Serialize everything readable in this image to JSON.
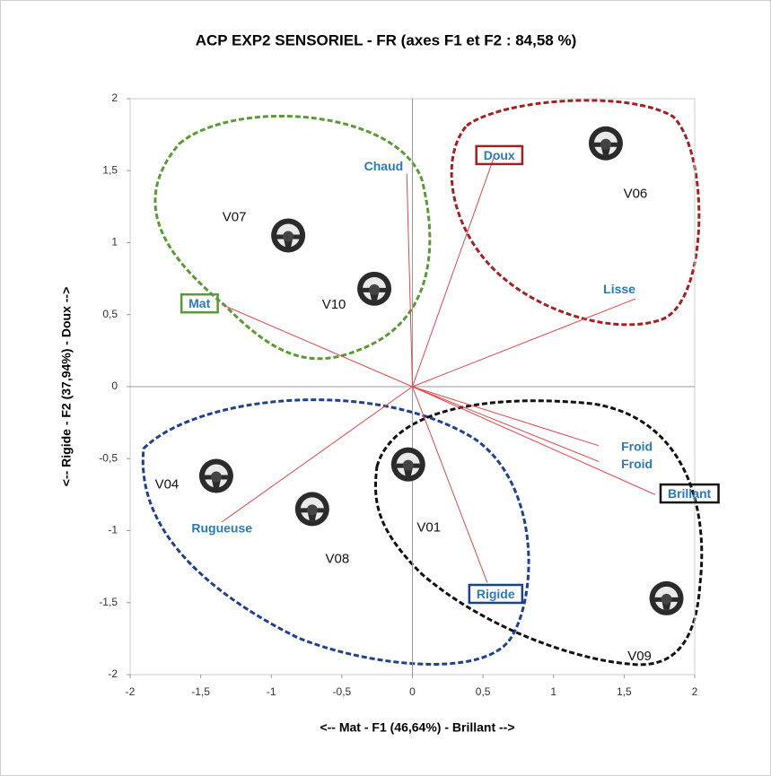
{
  "chart_data": {
    "type": "biplot",
    "title": "ACP EXP2 SENSORIEL - FR (axes F1 et F2 : 84,58 %)",
    "x_label": "<-- Mat   -   F1 (46,64%)   -   Brillant -->",
    "y_label": "<-- Rigide   -   F2 (37,94%)   -   Doux -->",
    "xlim": [
      -2,
      2
    ],
    "ylim": [
      -2,
      2
    ],
    "xticks": [
      -2,
      {
        "value": -1.5,
        "label": "-1,5"
      },
      -1,
      {
        "value": -0.5,
        "label": "-0,5"
      },
      0,
      {
        "value": 0.5,
        "label": "0,5"
      },
      1,
      {
        "value": 1.5,
        "label": "1,5"
      },
      2
    ],
    "yticks": [
      -2,
      {
        "value": -1.5,
        "label": "-1,5"
      },
      -1,
      {
        "value": -0.5,
        "label": "-0,5"
      },
      0,
      {
        "value": 0.5,
        "label": "0,5"
      },
      1,
      {
        "value": 1.5,
        "label": "1,5"
      },
      2
    ],
    "observations": {
      "labels": [
        "V07",
        "V10",
        "V06",
        "V04",
        "V08",
        "V01",
        "V09"
      ],
      "x": [
        -0.88,
        -0.27,
        1.37,
        -1.39,
        -0.71,
        -0.03,
        1.8
      ],
      "y": [
        1.05,
        0.68,
        1.69,
        -0.62,
        -0.85,
        -0.54,
        -1.47
      ]
    },
    "variables": {
      "labels": [
        "Chaud",
        "Doux",
        "Lisse",
        "Mat",
        "Froid",
        "Froid",
        "Brillant",
        "Rugueuse",
        "Rigide"
      ],
      "x": [
        -0.04,
        0.58,
        1.58,
        -1.35,
        1.32,
        1.32,
        1.72,
        -1.35,
        0.53
      ],
      "y": [
        1.48,
        1.6,
        0.61,
        0.57,
        -0.41,
        -0.52,
        -0.75,
        -0.94,
        -1.36
      ],
      "box_colors": [
        null,
        "#a31f24",
        null,
        "#5a9a35",
        null,
        null,
        "#111111",
        null,
        "#1f3f8f"
      ]
    },
    "vector_color": "#e0474c"
  }
}
